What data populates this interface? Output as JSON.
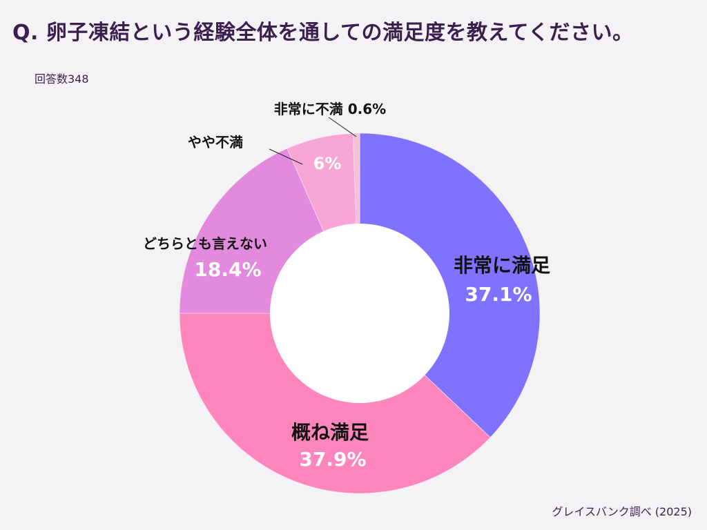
{
  "chart_data": {
    "type": "pie",
    "variant": "donut",
    "title": "Q. 卵子凍結という経験全体を通しての満足度を教えてください。",
    "respondents_label": "回答数348",
    "source": "グレイスバンク調べ (2025)",
    "unit": "%",
    "slices": [
      {
        "name": "非常に満足",
        "value": 37.1,
        "color": "#7f72ff"
      },
      {
        "name": "概ね満足",
        "value": 37.9,
        "color": "#ff85bd"
      },
      {
        "name": "どちらとも言えない",
        "value": 18.4,
        "color": "#e38ade"
      },
      {
        "name": "やや不満",
        "value": 6,
        "color": "#f7a6d6"
      },
      {
        "name": "非常に不満",
        "value": 0.6,
        "color": "#f6c0d8"
      }
    ],
    "value_labels": [
      "37.1%",
      "37.9%",
      "18.4%",
      "6%",
      "0.6%"
    ]
  }
}
